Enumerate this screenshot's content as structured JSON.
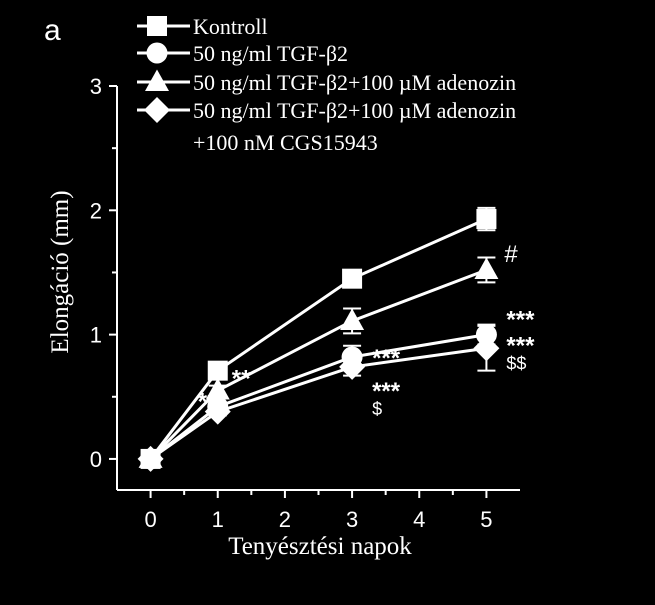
{
  "panel_label": "a",
  "chart_data": {
    "type": "line",
    "xlabel": "Tenyésztési napok",
    "ylabel": "Elongáció (mm)",
    "xlim": [
      -0.5,
      5.5
    ],
    "ylim": [
      -0.25,
      3
    ],
    "x_ticks": [
      0,
      1,
      2,
      3,
      4,
      5
    ],
    "y_ticks": [
      0,
      1,
      2,
      3
    ],
    "x": [
      0,
      1,
      3,
      5
    ],
    "grid": false,
    "legend_position": "top",
    "series": [
      {
        "name": "Kontroll",
        "marker": "square",
        "values": [
          0,
          0.71,
          1.45,
          1.93
        ],
        "errors": [
          0,
          0.03,
          0.06,
          0.09
        ]
      },
      {
        "name": "50 ng/ml TGF-β2",
        "marker": "circle",
        "values": [
          0,
          0.42,
          0.82,
          1.0
        ],
        "errors": [
          0,
          0.03,
          0.09,
          0.08
        ]
      },
      {
        "name": "50 ng/ml TGF-β2+100 µM adenozin",
        "marker": "triangle",
        "values": [
          0,
          0.55,
          1.11,
          1.52
        ],
        "errors": [
          0,
          0.04,
          0.1,
          0.1
        ]
      },
      {
        "name": "50 ng/ml TGF-β2+100 µM adenozin\n+100 nM CGS15943",
        "name_lines": [
          "50 ng/ml TGF-β2+100 µM adenozin",
          "+100 nM CGS15943"
        ],
        "marker": "diamond",
        "values": [
          0,
          0.38,
          0.74,
          0.89
        ],
        "errors": [
          0,
          0.03,
          0.07,
          0.18
        ]
      }
    ],
    "annotations": [
      {
        "text": "**",
        "x": 1,
        "series": 1
      },
      {
        "text": "***",
        "x": 1,
        "series": 3
      },
      {
        "text": "***",
        "x": 3,
        "series": 1
      },
      {
        "text": "***",
        "x": 3,
        "series": 3
      },
      {
        "text": "$",
        "x": 3,
        "series": 3
      },
      {
        "text": "#",
        "x": 5,
        "series": 2
      },
      {
        "text": "***",
        "x": 5,
        "series": 1
      },
      {
        "text": "***",
        "x": 5,
        "series": 3
      },
      {
        "text": "$$",
        "x": 5,
        "series": 3
      }
    ]
  }
}
